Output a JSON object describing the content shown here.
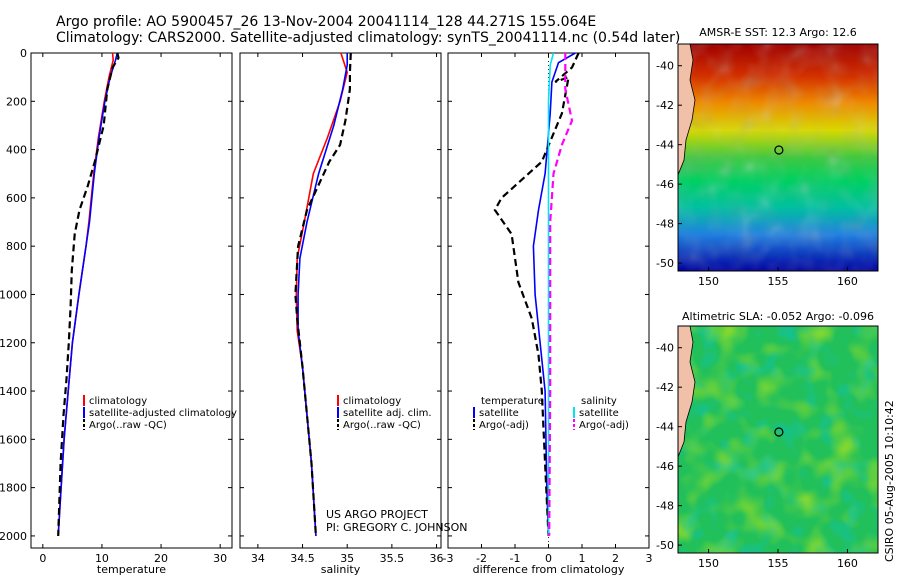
{
  "header": {
    "line1": "Argo profile: AO 5900457_26 13-Nov-2004 20041114_128 44.271S 155.064E",
    "line2": "Climatology: CARS2000. Satellite-adjusted climatology: synTS_20041114.nc (0.54d later)"
  },
  "side_text": "CSIRO 05-Aug-2005 10:10:42",
  "project_text": [
    "US ARGO PROJECT",
    "PI: GREGORY C. JOHNSON"
  ],
  "colors": {
    "climatology": "#ff0000",
    "satellite": "#0000ff",
    "argo": "#000000",
    "sal_satellite": "#00e5ee",
    "sal_argo_adj": "#ff00ff"
  },
  "chart_data": [
    {
      "type": "line",
      "name": "temperature profile",
      "xlabel": "temperature",
      "ylabel": "",
      "xlim": [
        -2,
        32
      ],
      "ylim": [
        2050,
        0
      ],
      "xticks": [
        0,
        10,
        20,
        30
      ],
      "yticks": [
        0,
        200,
        400,
        600,
        800,
        1000,
        1200,
        1400,
        1600,
        1800,
        2000
      ],
      "legend": [
        "climatology",
        "satellite-adjusted climatology",
        "Argo(..raw -QC)"
      ],
      "series": [
        {
          "name": "climatology",
          "color": "#ff0000",
          "style": "solid",
          "points": [
            [
              11.8,
              0
            ],
            [
              11.9,
              30
            ],
            [
              11.2,
              100
            ],
            [
              10.4,
              200
            ],
            [
              9.4,
              350
            ],
            [
              8.6,
              500
            ],
            [
              7.8,
              700
            ],
            [
              7.3,
              800
            ],
            [
              6.1,
              1000
            ],
            [
              5.0,
              1200
            ],
            [
              4.3,
              1400
            ],
            [
              3.6,
              1600
            ],
            [
              3.1,
              1800
            ],
            [
              2.6,
              2000
            ]
          ]
        },
        {
          "name": "satellite-adjusted climatology",
          "color": "#0000ff",
          "style": "solid",
          "points": [
            [
              12.6,
              0
            ],
            [
              12.3,
              30
            ],
            [
              11.4,
              100
            ],
            [
              10.5,
              200
            ],
            [
              9.5,
              350
            ],
            [
              8.7,
              500
            ],
            [
              7.9,
              700
            ],
            [
              7.3,
              800
            ],
            [
              6.1,
              1000
            ],
            [
              5.0,
              1200
            ],
            [
              4.3,
              1400
            ],
            [
              3.6,
              1600
            ],
            [
              3.1,
              1800
            ],
            [
              2.6,
              2000
            ]
          ]
        },
        {
          "name": "Argo(..raw -QC)",
          "color": "#000000",
          "style": "dashed",
          "points": [
            [
              12.6,
              0
            ],
            [
              12.8,
              20
            ],
            [
              11.8,
              60
            ],
            [
              10.9,
              150
            ],
            [
              10.3,
              300
            ],
            [
              8.8,
              450
            ],
            [
              7.6,
              550
            ],
            [
              6.2,
              650
            ],
            [
              5.4,
              750
            ],
            [
              4.9,
              900
            ],
            [
              4.7,
              1050
            ],
            [
              4.4,
              1200
            ],
            [
              4.0,
              1350
            ],
            [
              3.5,
              1500
            ],
            [
              3.0,
              1700
            ],
            [
              2.6,
              2000
            ]
          ]
        }
      ]
    },
    {
      "type": "line",
      "name": "salinity profile",
      "xlabel": "salinity",
      "ylabel": "",
      "xlim": [
        33.8,
        36.05
      ],
      "ylim": [
        2050,
        0
      ],
      "xticks": [
        34,
        34.5,
        35,
        35.5,
        36
      ],
      "legend": [
        "climatology",
        "satellite adj. clim.",
        "Argo(..raw -QC)"
      ],
      "series": [
        {
          "name": "climatology",
          "color": "#ff0000",
          "style": "solid",
          "points": [
            [
              34.93,
              0
            ],
            [
              35.0,
              80
            ],
            [
              34.92,
              200
            ],
            [
              34.78,
              350
            ],
            [
              34.62,
              500
            ],
            [
              34.52,
              700
            ],
            [
              34.44,
              850
            ],
            [
              34.43,
              1000
            ],
            [
              34.44,
              1150
            ],
            [
              34.5,
              1300
            ],
            [
              34.55,
              1500
            ],
            [
              34.6,
              1700
            ],
            [
              34.65,
              2000
            ]
          ]
        },
        {
          "name": "satellite adj. clim.",
          "color": "#0000ff",
          "style": "solid",
          "points": [
            [
              35.0,
              0
            ],
            [
              35.0,
              50
            ],
            [
              34.95,
              150
            ],
            [
              34.85,
              300
            ],
            [
              34.68,
              500
            ],
            [
              34.55,
              700
            ],
            [
              34.47,
              850
            ],
            [
              34.45,
              1000
            ],
            [
              34.45,
              1150
            ],
            [
              34.5,
              1300
            ],
            [
              34.55,
              1500
            ],
            [
              34.6,
              1700
            ],
            [
              34.65,
              2000
            ]
          ]
        },
        {
          "name": "Argo(..raw -QC)",
          "color": "#000000",
          "style": "dashed",
          "points": [
            [
              35.04,
              0
            ],
            [
              35.03,
              80
            ],
            [
              35.03,
              150
            ],
            [
              34.98,
              280
            ],
            [
              34.92,
              380
            ],
            [
              34.8,
              450
            ],
            [
              34.55,
              650
            ],
            [
              34.45,
              800
            ],
            [
              34.42,
              1000
            ],
            [
              34.44,
              1100
            ],
            [
              34.5,
              1300
            ],
            [
              34.55,
              1500
            ],
            [
              34.6,
              1700
            ],
            [
              34.65,
              2000
            ]
          ]
        }
      ]
    },
    {
      "type": "line",
      "name": "difference from climatology",
      "xlabel": "difference from climatology",
      "ylabel": "",
      "xlim": [
        -3,
        3
      ],
      "ylim": [
        2050,
        0
      ],
      "xticks": [
        -3,
        -2,
        -1,
        0,
        1,
        2,
        3
      ],
      "legend_left": [
        "temperature",
        "satellite",
        "Argo(-adj)"
      ],
      "legend_right": [
        "salinity",
        "satellite",
        "Argo(-adj)"
      ],
      "series": [
        {
          "name": "temperature satellite",
          "color": "#0000ff",
          "style": "solid",
          "points": [
            [
              0.8,
              0
            ],
            [
              0.3,
              40
            ],
            [
              0.1,
              120
            ],
            [
              0.05,
              250
            ],
            [
              -0.1,
              500
            ],
            [
              -0.3,
              650
            ],
            [
              -0.45,
              800
            ],
            [
              -0.4,
              1000
            ],
            [
              -0.25,
              1200
            ],
            [
              -0.1,
              1400
            ],
            [
              -0.05,
              1800
            ],
            [
              0,
              2000
            ]
          ]
        },
        {
          "name": "temperature Argo(-adj)",
          "color": "#000000",
          "style": "dashed",
          "points": [
            [
              0.9,
              0
            ],
            [
              0.7,
              60
            ],
            [
              0.2,
              120
            ],
            [
              0.6,
              100
            ],
            [
              0.4,
              250
            ],
            [
              -0.2,
              450
            ],
            [
              -1.4,
              600
            ],
            [
              -1.6,
              650
            ],
            [
              -1.1,
              750
            ],
            [
              -0.9,
              950
            ],
            [
              -0.5,
              1100
            ],
            [
              -0.3,
              1250
            ],
            [
              -0.2,
              1400
            ],
            [
              -0.1,
              1700
            ],
            [
              0,
              2000
            ]
          ]
        },
        {
          "name": "salinity satellite",
          "color": "#00e5ee",
          "style": "solid",
          "points": [
            [
              0.15,
              0
            ],
            [
              0.05,
              50
            ],
            [
              0.0,
              200
            ],
            [
              0.0,
              500
            ],
            [
              0.0,
              1000
            ],
            [
              0.0,
              1500
            ],
            [
              0.0,
              2000
            ]
          ]
        },
        {
          "name": "salinity Argo(-adj)",
          "color": "#ff00ff",
          "style": "dashed",
          "points": [
            [
              0.5,
              0
            ],
            [
              0.5,
              60
            ],
            [
              0.5,
              150
            ],
            [
              0.7,
              280
            ],
            [
              0.4,
              380
            ],
            [
              0.15,
              500
            ],
            [
              0.05,
              700
            ],
            [
              0.05,
              1000
            ],
            [
              0.05,
              1400
            ],
            [
              0.02,
              2000
            ]
          ]
        }
      ]
    },
    {
      "type": "heatmap",
      "name": "SST map",
      "title": "AMSR-E SST: 12.3 Argo: 12.6",
      "xlim": [
        147.8,
        162.2
      ],
      "ylim": [
        -50.4,
        -38.9
      ],
      "xticks": [
        150,
        155,
        160
      ],
      "yticks": [
        -40,
        -42,
        -44,
        -46,
        -48,
        -50
      ],
      "marker": {
        "lon": 155.064,
        "lat": -44.271
      }
    },
    {
      "type": "heatmap",
      "name": "SLA map",
      "title": "Altimetric SLA: -0.052 Argo: -0.096",
      "xlim": [
        147.8,
        162.2
      ],
      "ylim": [
        -50.4,
        -38.9
      ],
      "xticks": [
        150,
        155,
        160
      ],
      "yticks": [
        -40,
        -42,
        -44,
        -46,
        -48,
        -50
      ],
      "marker": {
        "lon": 155.064,
        "lat": -44.271
      }
    }
  ]
}
